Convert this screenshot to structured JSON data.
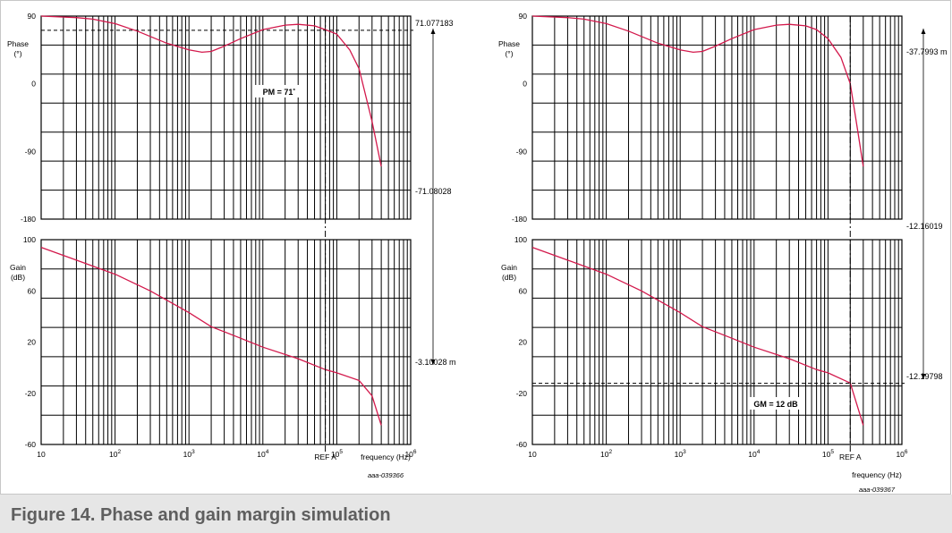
{
  "caption": "Figure 14.  Phase and gain margin simulation",
  "chart_data": [
    {
      "type": "line",
      "id": "phase_margin_plot",
      "x_scale": "log",
      "xlabel": "frequency  (Hz)",
      "x_tick_labels": [
        "10",
        "10²",
        "10³",
        "10⁴",
        "10⁵",
        "10⁶"
      ],
      "x_tick_values": [
        10,
        100,
        1000,
        10000,
        100000,
        1000000
      ],
      "xlim": [
        10,
        1000000
      ],
      "figure_code": "aaa-039366",
      "reference_label": "REF A",
      "reference_x": 70000,
      "panels": [
        {
          "name": "phase",
          "ylabel_lines": [
            "Phase",
            "(°)"
          ],
          "ylim": [
            -180,
            90
          ],
          "y_tick_labels": [
            "90",
            "0",
            "-90",
            "-180"
          ],
          "y_tick_values": [
            90,
            0,
            -90,
            -180
          ],
          "series": [
            {
              "color": "#d3194c",
              "x": [
                10,
                30,
                50,
                100,
                200,
                500,
                1000,
                1500,
                2000,
                3000,
                5000,
                10000,
                20000,
                30000,
                50000,
                70000,
                100000,
                150000,
                200000,
                300000,
                400000
              ],
              "y": [
                90,
                88,
                86,
                80,
                70,
                54,
                45,
                42,
                43,
                50,
                60,
                72,
                78,
                79,
                77,
                72,
                66,
                45,
                20,
                -50,
                -110
              ]
            }
          ],
          "markers": [
            {
              "label": "71.077183",
              "y": 71.08,
              "line": "horizontal",
              "style": "dashed"
            },
            {
              "label": "-71.08028"
            }
          ],
          "annotation": "PM = 71˚"
        },
        {
          "name": "gain",
          "ylabel_lines": [
            "Gain",
            "(dB)"
          ],
          "ylim": [
            -60,
            100
          ],
          "y_tick_labels": [
            "100",
            "60",
            "20",
            "-20",
            "-60"
          ],
          "y_tick_values": [
            100,
            60,
            20,
            -20,
            -60
          ],
          "series": [
            {
              "color": "#d3194c",
              "x": [
                10,
                30,
                100,
                300,
                1000,
                2000,
                5000,
                10000,
                30000,
                70000,
                100000,
                200000,
                300000,
                400000
              ],
              "y": [
                94,
                84,
                73,
                60,
                43,
                32,
                23,
                16,
                7,
                -1.5,
                -4,
                -10,
                -22,
                -45
              ]
            }
          ],
          "markers": [
            {
              "label": "-3.10028 m"
            }
          ]
        }
      ]
    },
    {
      "type": "line",
      "id": "gain_margin_plot",
      "x_scale": "log",
      "xlabel": "frequency  (Hz)",
      "x_tick_labels": [
        "10",
        "10²",
        "10³",
        "10⁴",
        "10⁵",
        "10⁶"
      ],
      "x_tick_values": [
        10,
        100,
        1000,
        10000,
        100000,
        1000000
      ],
      "xlim": [
        10,
        1000000
      ],
      "figure_code": "aaa-039367",
      "reference_label": "REF A",
      "reference_x": 200000,
      "panels": [
        {
          "name": "phase",
          "ylabel_lines": [
            "Phase",
            "(°)"
          ],
          "ylim": [
            -180,
            90
          ],
          "y_tick_labels": [
            "90",
            "0",
            "-90",
            "-180"
          ],
          "y_tick_values": [
            90,
            0,
            -90,
            -180
          ],
          "series": [
            {
              "color": "#d3194c",
              "x": [
                10,
                30,
                50,
                100,
                200,
                500,
                1000,
                1500,
                2000,
                3000,
                5000,
                10000,
                20000,
                30000,
                50000,
                70000,
                100000,
                150000,
                200000,
                250000,
                300000
              ],
              "y": [
                90,
                88,
                86,
                80,
                70,
                54,
                45,
                42,
                43,
                50,
                60,
                72,
                78,
                79,
                77,
                72,
                60,
                35,
                0,
                -60,
                -110
              ]
            }
          ],
          "markers": [
            {
              "label": "-37.7993 m"
            },
            {
              "label": "-12.16019"
            }
          ]
        },
        {
          "name": "gain",
          "ylabel_lines": [
            "Gain",
            "(dB)"
          ],
          "ylim": [
            -60,
            100
          ],
          "y_tick_labels": [
            "100",
            "60",
            "20",
            "-20",
            "-60"
          ],
          "y_tick_values": [
            100,
            60,
            20,
            -20,
            -60
          ],
          "series": [
            {
              "color": "#d3194c",
              "x": [
                10,
                30,
                100,
                300,
                1000,
                2000,
                5000,
                10000,
                30000,
                70000,
                100000,
                200000,
                300000
              ],
              "y": [
                94,
                84,
                73,
                60,
                43,
                32,
                23,
                16,
                7,
                -1.5,
                -4,
                -12,
                -45
              ]
            }
          ],
          "markers": [
            {
              "label": "-12.19798",
              "y": -12.2,
              "line": "horizontal",
              "style": "dashed"
            }
          ],
          "annotation": "GM = 12 dB"
        }
      ]
    }
  ]
}
